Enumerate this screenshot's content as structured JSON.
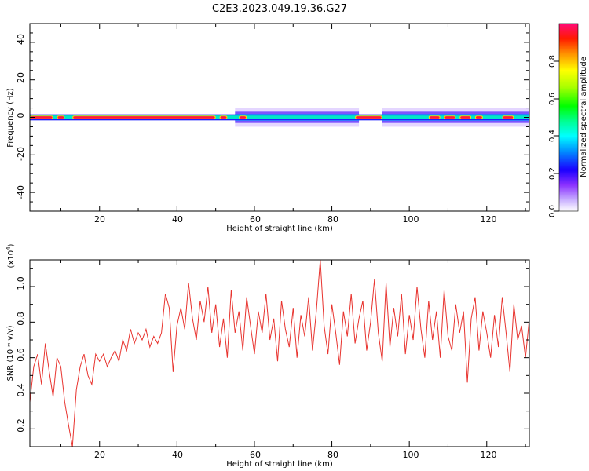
{
  "title": "C2E3.2023.049.19.36.G27",
  "chart_data": [
    {
      "type": "heatmap",
      "xlabel": "Height of straight line (km)",
      "ylabel": "Frequency (Hz)",
      "xlim": [
        2,
        131
      ],
      "ylim": [
        -50,
        50
      ],
      "xticks": [
        "20",
        "40",
        "60",
        "80",
        "100",
        "120"
      ],
      "yticks": [
        "-40",
        "-20",
        "0",
        "20",
        "40"
      ],
      "colorbar": {
        "label": "Normalized spectral amplitude",
        "range": [
          0,
          1
        ],
        "ticks": [
          "0.0",
          "0.2",
          "0.4",
          "0.6",
          "0.8"
        ]
      },
      "ridge": {
        "frequency_hz": 0,
        "high_amplitude_segments_km": [
          [
            2,
            8
          ],
          [
            9,
            11
          ],
          [
            13,
            50
          ],
          [
            51,
            53
          ],
          [
            56,
            58
          ],
          [
            86,
            93
          ],
          [
            105,
            108
          ],
          [
            109,
            112
          ],
          [
            113,
            116
          ],
          [
            117,
            119
          ],
          [
            124,
            127
          ]
        ],
        "broad_spread_segments_km": [
          [
            55,
            87
          ],
          [
            93,
            131
          ]
        ]
      },
      "grid": false
    },
    {
      "type": "line",
      "xlabel": "Height of straight line (km)",
      "ylabel": "SNR (10 * v/v)",
      "y_multiplier": "(x10^4)",
      "xlim": [
        2,
        131
      ],
      "ylim": [
        0.1,
        1.15
      ],
      "xticks": [
        "20",
        "40",
        "60",
        "80",
        "100",
        "120"
      ],
      "yticks": [
        "0.2",
        "0.4",
        "0.6",
        "0.8",
        "1.0"
      ],
      "series": [
        {
          "color": "#e8332e",
          "x": [
            2,
            3,
            4,
            5,
            6,
            7,
            8,
            9,
            10,
            11,
            12,
            13,
            14,
            15,
            16,
            17,
            18,
            19,
            20,
            21,
            22,
            23,
            24,
            25,
            26,
            27,
            28,
            29,
            30,
            31,
            32,
            33,
            34,
            35,
            36,
            37,
            38,
            39,
            40,
            41,
            42,
            43,
            44,
            45,
            46,
            47,
            48,
            49,
            50,
            51,
            52,
            53,
            54,
            55,
            56,
            57,
            58,
            59,
            60,
            61,
            62,
            63,
            64,
            65,
            66,
            67,
            68,
            69,
            70,
            71,
            72,
            73,
            74,
            75,
            76,
            77,
            78,
            79,
            80,
            81,
            82,
            83,
            84,
            85,
            86,
            87,
            88,
            89,
            90,
            91,
            92,
            93,
            94,
            95,
            96,
            97,
            98,
            99,
            100,
            101,
            102,
            103,
            104,
            105,
            106,
            107,
            108,
            109,
            110,
            111,
            112,
            113,
            114,
            115,
            116,
            117,
            118,
            119,
            120,
            121,
            122,
            123,
            124,
            125,
            126,
            127,
            128,
            129,
            130,
            131
          ],
          "y": [
            0.35,
            0.55,
            0.62,
            0.45,
            0.68,
            0.52,
            0.38,
            0.6,
            0.55,
            0.35,
            0.22,
            0.1,
            0.42,
            0.55,
            0.62,
            0.5,
            0.45,
            0.62,
            0.58,
            0.62,
            0.55,
            0.6,
            0.64,
            0.58,
            0.7,
            0.64,
            0.76,
            0.68,
            0.74,
            0.7,
            0.76,
            0.66,
            0.72,
            0.68,
            0.74,
            0.96,
            0.88,
            0.52,
            0.78,
            0.88,
            0.76,
            1.02,
            0.82,
            0.7,
            0.92,
            0.8,
            1.0,
            0.74,
            0.9,
            0.66,
            0.82,
            0.6,
            0.98,
            0.74,
            0.86,
            0.64,
            0.94,
            0.78,
            0.62,
            0.86,
            0.74,
            0.96,
            0.7,
            0.82,
            0.58,
            0.92,
            0.76,
            0.66,
            0.88,
            0.6,
            0.84,
            0.72,
            0.94,
            0.64,
            0.86,
            1.15,
            0.78,
            0.62,
            0.9,
            0.74,
            0.56,
            0.86,
            0.72,
            0.96,
            0.68,
            0.82,
            0.92,
            0.64,
            0.8,
            1.04,
            0.74,
            0.58,
            1.02,
            0.66,
            0.88,
            0.72,
            0.96,
            0.62,
            0.84,
            0.7,
            1.0,
            0.76,
            0.6,
            0.92,
            0.7,
            0.86,
            0.6,
            0.98,
            0.72,
            0.64,
            0.9,
            0.74,
            0.86,
            0.46,
            0.82,
            0.94,
            0.64,
            0.86,
            0.74,
            0.6,
            0.84,
            0.66,
            0.94,
            0.74,
            0.52,
            0.9,
            0.7,
            0.78,
            0.6,
            0.82
          ]
        }
      ],
      "grid": false
    }
  ]
}
